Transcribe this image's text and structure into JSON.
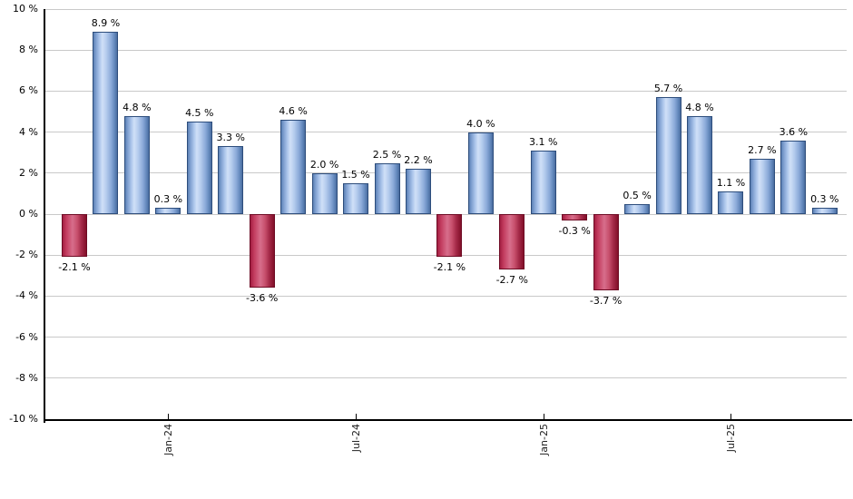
{
  "chart_data": {
    "type": "bar",
    "title": "",
    "xlabel": "",
    "ylabel": "",
    "ylim": [
      -10,
      10
    ],
    "ytick_step": 2,
    "grid": true,
    "legend_position": "none",
    "background_color": "#ffffff",
    "gridline_color": "#c9c9c9",
    "axis_color": "#000000",
    "positive_bar_color": "#9cb8e4",
    "positive_bar_border": "#2d4d7c",
    "negative_bar_color": "#c84a68",
    "negative_bar_border": "#6e0b24",
    "values": [
      -2.1,
      8.9,
      4.8,
      0.3,
      4.5,
      3.3,
      -3.6,
      4.6,
      2.0,
      1.5,
      2.5,
      2.2,
      -2.1,
      4.0,
      -2.7,
      3.1,
      -0.3,
      -3.7,
      0.5,
      5.7,
      4.8,
      1.1,
      2.7,
      3.6,
      0.3
    ],
    "bar_labels": [
      "-2.1 %",
      "8.9 %",
      "4.8 %",
      "0.3 %",
      "4.5 %",
      "3.3 %",
      "-3.6 %",
      "4.6 %",
      "2.0 %",
      "1.5 %",
      "2.5 %",
      "2.2 %",
      "-2.1 %",
      "4.0 %",
      "-2.7 %",
      "3.1 %",
      "-0.3 %",
      "-3.7 %",
      "0.5 %",
      "5.7 %",
      "4.8 %",
      "1.1 %",
      "2.7 %",
      "3.6 %",
      "0.3 %"
    ],
    "yticks": [
      {
        "value": 10,
        "label": "10 %"
      },
      {
        "value": 8,
        "label": "8 %"
      },
      {
        "value": 6,
        "label": "6 %"
      },
      {
        "value": 4,
        "label": "4 %"
      },
      {
        "value": 2,
        "label": "2 %"
      },
      {
        "value": 0,
        "label": "0 %"
      },
      {
        "value": -2,
        "label": "-2 %"
      },
      {
        "value": -4,
        "label": "-4 %"
      },
      {
        "value": -6,
        "label": "-6 %"
      },
      {
        "value": -8,
        "label": "-8 %"
      },
      {
        "value": -10,
        "label": "-10 %"
      }
    ],
    "xticks": [
      {
        "bar_index": 3,
        "label": "Jan-24"
      },
      {
        "bar_index": 9,
        "label": "Jul-24"
      },
      {
        "bar_index": 15,
        "label": "Jan-25"
      },
      {
        "bar_index": 21,
        "label": "Jul-25"
      }
    ]
  }
}
